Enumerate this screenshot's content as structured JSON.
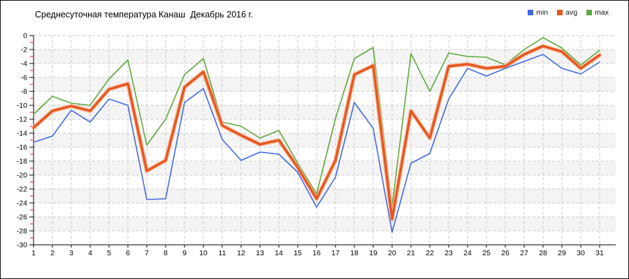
{
  "title": "Среднесуточная температура Канаш  Декабрь 2016 г.",
  "legend": [
    {
      "label": "min",
      "color": "#4169e1"
    },
    {
      "label": "avg",
      "color": "#e5551f"
    },
    {
      "label": "max",
      "color": "#5fa83d"
    }
  ],
  "chart_data": {
    "type": "line",
    "title": "Среднесуточная температура Канаш  Декабрь 2016 г.",
    "xlabel": "",
    "ylabel": "",
    "x": [
      1,
      2,
      3,
      4,
      5,
      6,
      7,
      8,
      9,
      10,
      11,
      12,
      13,
      14,
      15,
      16,
      17,
      18,
      19,
      20,
      21,
      22,
      23,
      24,
      25,
      26,
      27,
      28,
      29,
      30,
      31
    ],
    "x_tick_labels": [
      "1",
      "2",
      "3",
      "4",
      "5",
      "6",
      "7",
      "8",
      "9",
      "10",
      "11",
      "12",
      "13",
      "14",
      "15",
      "16",
      "17",
      "18",
      "19",
      "20",
      "21",
      "22",
      "23",
      "24",
      "25",
      "26",
      "27",
      "28",
      "29",
      "30",
      "31"
    ],
    "y_tick_labels": [
      "0",
      "-2",
      "-4",
      "-6",
      "-8",
      "-10",
      "-12",
      "-14",
      "-16",
      "-18",
      "-20",
      "-22",
      "-24",
      "-26",
      "-28",
      "-30"
    ],
    "ylim": [
      -30,
      0
    ],
    "y_tick_step": 2,
    "grid": true,
    "legend_position": "top-right",
    "series": [
      {
        "name": "min",
        "color": "#4169e1",
        "width": 1.6,
        "values": [
          -15.3,
          -14.4,
          -10.7,
          -12.4,
          -9.1,
          -10.0,
          -23.5,
          -23.4,
          -9.6,
          -7.6,
          -14.9,
          -17.9,
          -16.7,
          -17.0,
          -19.6,
          -24.6,
          -20.3,
          -9.6,
          -13.3,
          -28.2,
          -18.3,
          -16.9,
          -9.1,
          -4.7,
          -5.8,
          -4.7,
          -3.7,
          -2.7,
          -4.7,
          -5.5,
          -3.8
        ]
      },
      {
        "name": "avg",
        "color": "#e5551f",
        "halo": "#f6b18c",
        "width": 3.2,
        "values": [
          -13.2,
          -10.8,
          -10.1,
          -10.8,
          -7.7,
          -6.9,
          -19.4,
          -17.9,
          -7.4,
          -5.2,
          -12.9,
          -14.3,
          -15.6,
          -15.0,
          -18.9,
          -23.4,
          -17.9,
          -5.6,
          -4.3,
          -26.3,
          -10.8,
          -14.7,
          -4.4,
          -4.1,
          -4.7,
          -4.4,
          -2.7,
          -1.5,
          -2.3,
          -4.7,
          -2.8
        ]
      },
      {
        "name": "max",
        "color": "#5fa83d",
        "width": 1.6,
        "values": [
          -11.3,
          -8.7,
          -9.7,
          -10.0,
          -6.2,
          -3.5,
          -15.7,
          -12.0,
          -5.6,
          -3.3,
          -12.4,
          -13.0,
          -14.7,
          -13.6,
          -18.3,
          -22.7,
          -11.9,
          -3.3,
          -1.7,
          -24.5,
          -2.6,
          -8.0,
          -2.5,
          -3.0,
          -3.1,
          -4.2,
          -2.0,
          -0.3,
          -1.8,
          -4.2,
          -2.1
        ]
      }
    ],
    "style": {
      "grid_color": "#c9c9c9",
      "band_color": "#f4f4f4",
      "axis_color": "#000000",
      "minor_tick_color": "#cc2222",
      "plot_bg": "#ffffff"
    }
  }
}
